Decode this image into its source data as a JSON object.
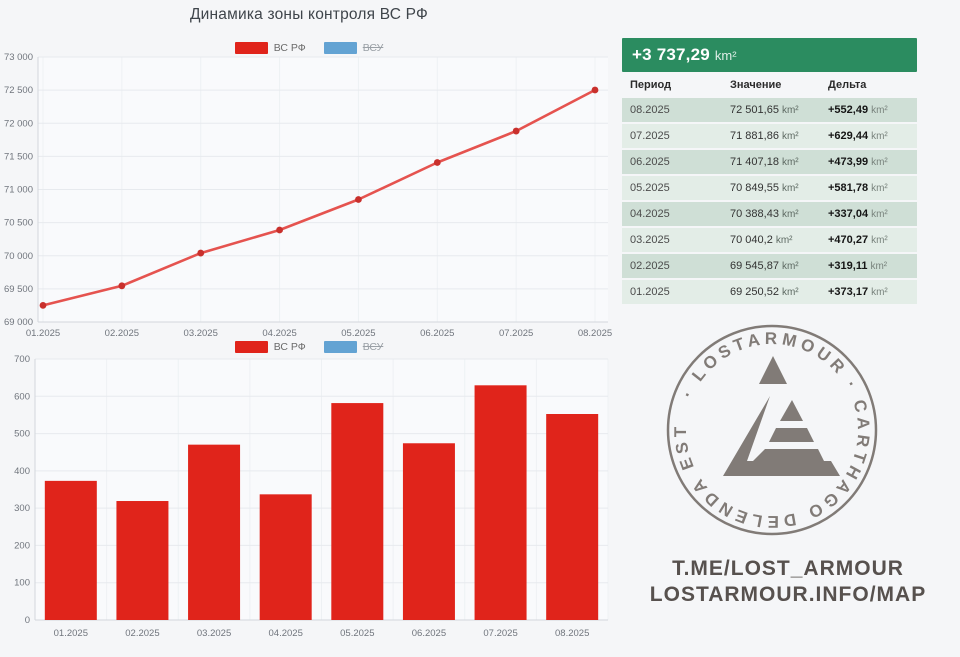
{
  "page": {
    "title": "Динамика зоны контроля ВС РФ"
  },
  "colors": {
    "background": "#f5f6f8",
    "plot_background": "#f9fafc",
    "accent_green": "#2b8c60",
    "bar_red": "#e0241b",
    "line_red": "#e5534f",
    "point_red": "#c9302c",
    "legend_blue": "#63a3d3",
    "grid": "#e7eaee",
    "axis": "#d3d7dc"
  },
  "legend": {
    "items": [
      {
        "key": "vs-rf",
        "label": "ВС РФ",
        "color": "#e0241b",
        "active": true
      },
      {
        "key": "vsu",
        "label": "ВСУ",
        "color": "#63a3d3",
        "active": false
      }
    ]
  },
  "chart_data": [
    {
      "type": "line",
      "title": "Динамика зоны контроля ВС РФ",
      "categories": [
        "01.2025",
        "02.2025",
        "03.2025",
        "04.2025",
        "05.2025",
        "06.2025",
        "07.2025",
        "08.2025"
      ],
      "series": [
        {
          "name": "ВС РФ",
          "color": "#e5534f",
          "point_color": "#c9302c",
          "hidden": false,
          "values": [
            69250.52,
            69545.87,
            70040.2,
            70388.43,
            70849.55,
            71407.18,
            71881.86,
            72501.65
          ]
        },
        {
          "name": "ВСУ",
          "color": "#63a3d3",
          "hidden": true,
          "values": []
        }
      ],
      "xlabel": "",
      "ylabel": "",
      "ylim": [
        69000,
        73000
      ],
      "yticks": [
        {
          "value": 69000,
          "label": "69 000"
        },
        {
          "value": 69500,
          "label": "69 500"
        },
        {
          "value": 70000,
          "label": "70 000"
        },
        {
          "value": 70500,
          "label": "70 500"
        },
        {
          "value": 71000,
          "label": "71 000"
        },
        {
          "value": 71500,
          "label": "71 500"
        },
        {
          "value": 72000,
          "label": "72 000"
        },
        {
          "value": 72500,
          "label": "72 500"
        },
        {
          "value": 73000,
          "label": "73 000"
        }
      ],
      "grid": true,
      "legend_position": "top"
    },
    {
      "type": "bar",
      "title": "",
      "categories": [
        "01.2025",
        "02.2025",
        "03.2025",
        "04.2025",
        "05.2025",
        "06.2025",
        "07.2025",
        "08.2025"
      ],
      "series": [
        {
          "name": "ВС РФ",
          "color": "#e0241b",
          "hidden": false,
          "values": [
            373.17,
            319.11,
            470.27,
            337.04,
            581.78,
            473.99,
            629.44,
            552.49
          ]
        },
        {
          "name": "ВСУ",
          "color": "#63a3d3",
          "hidden": true,
          "values": []
        }
      ],
      "xlabel": "",
      "ylabel": "",
      "ylim": [
        0,
        700
      ],
      "yticks": [
        {
          "value": 0,
          "label": "0"
        },
        {
          "value": 100,
          "label": "100"
        },
        {
          "value": 200,
          "label": "200"
        },
        {
          "value": 300,
          "label": "300"
        },
        {
          "value": 400,
          "label": "400"
        },
        {
          "value": 500,
          "label": "500"
        },
        {
          "value": 600,
          "label": "600"
        },
        {
          "value": 700,
          "label": "700"
        }
      ],
      "grid": true,
      "legend_position": "top"
    }
  ],
  "summary_table": {
    "total_delta": "+3 737,29",
    "unit": "km²",
    "columns": [
      "Период",
      "Значение",
      "Дельта"
    ],
    "rows": [
      {
        "period": "08.2025",
        "value": "72 501,65",
        "delta": "+552,49"
      },
      {
        "period": "07.2025",
        "value": "71 881,86",
        "delta": "+629,44"
      },
      {
        "period": "06.2025",
        "value": "71 407,18",
        "delta": "+473,99"
      },
      {
        "period": "05.2025",
        "value": "70 849,55",
        "delta": "+581,78"
      },
      {
        "period": "04.2025",
        "value": "70 388,43",
        "delta": "+337,04"
      },
      {
        "period": "03.2025",
        "value": "70 040,2",
        "delta": "+470,27"
      },
      {
        "period": "02.2025",
        "value": "69 545,87",
        "delta": "+319,11"
      },
      {
        "period": "01.2025",
        "value": "69 250,52",
        "delta": "+373,17"
      }
    ]
  },
  "watermark": {
    "circle_text": "· LOSTARMOUR · CARTHAGO DELENDA EST",
    "links": [
      "T.ME/LOST_ARMOUR",
      "LOSTARMOUR.INFO/MAP"
    ]
  }
}
